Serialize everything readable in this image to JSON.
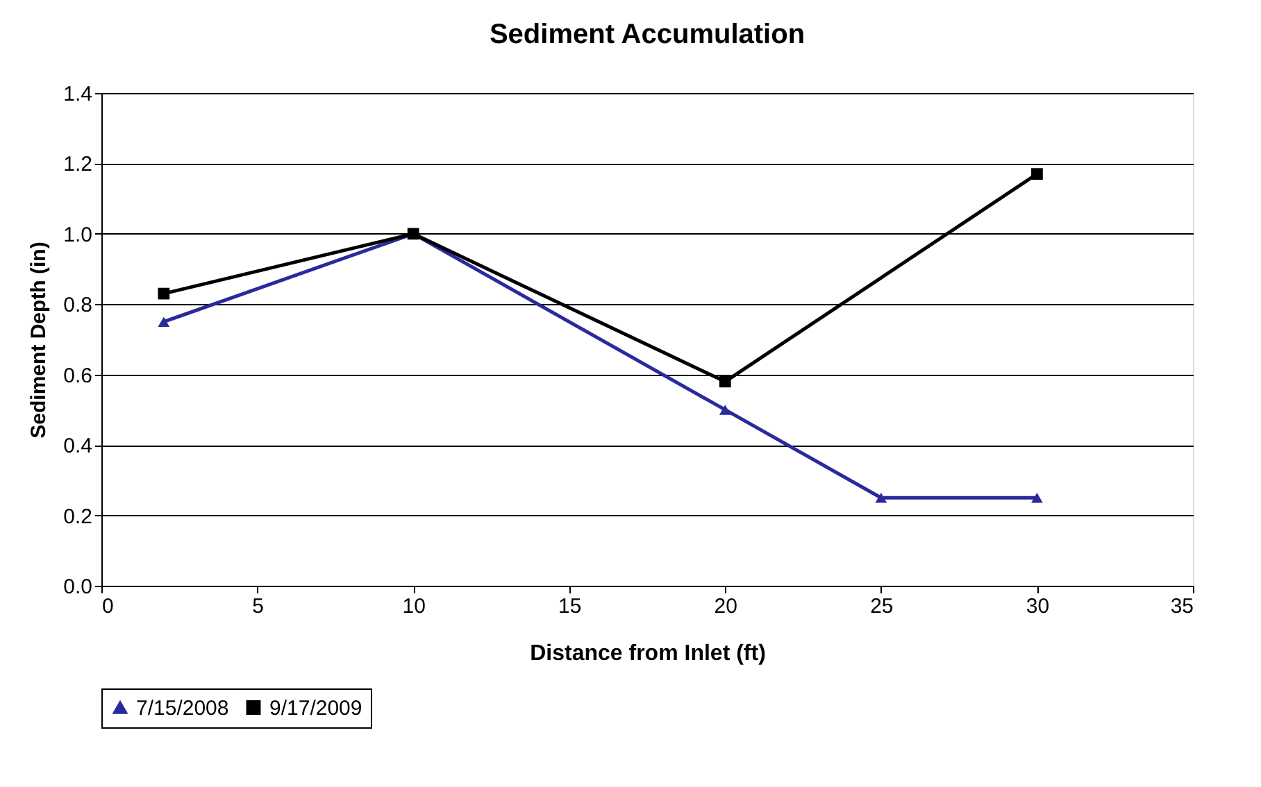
{
  "chart_data": {
    "type": "line",
    "title": "Sediment Accumulation",
    "xlabel": "Distance from Inlet (ft)",
    "ylabel": "Sediment Depth (in)",
    "series": [
      {
        "name": "7/15/2008",
        "color": "#2a2a9c",
        "marker": "triangle",
        "x": [
          2,
          10,
          20,
          25,
          30
        ],
        "values": [
          0.75,
          1.0,
          0.5,
          0.25,
          0.25
        ]
      },
      {
        "name": "9/17/2009",
        "color": "#000000",
        "marker": "square",
        "x": [
          2,
          10,
          20,
          30
        ],
        "values": [
          0.83,
          1.0,
          0.58,
          1.17
        ]
      }
    ],
    "xlim": [
      0,
      35
    ],
    "xticks": [
      0,
      5,
      10,
      15,
      20,
      25,
      30,
      35
    ],
    "ylim": [
      0,
      1.4
    ],
    "yticks": [
      {
        "value": 0,
        "label": "0.0"
      },
      {
        "value": 0.2,
        "label": "0.2"
      },
      {
        "value": 0.4,
        "label": "0.4"
      },
      {
        "value": 0.6,
        "label": "0.6"
      },
      {
        "value": 0.8,
        "label": "0.8"
      },
      {
        "value": 1,
        "label": "1.0"
      },
      {
        "value": 1.2,
        "label": "1.2"
      },
      {
        "value": 1.4,
        "label": "1.4"
      }
    ],
    "grid": "y",
    "legend": "bottom",
    "line_style": "solid"
  }
}
